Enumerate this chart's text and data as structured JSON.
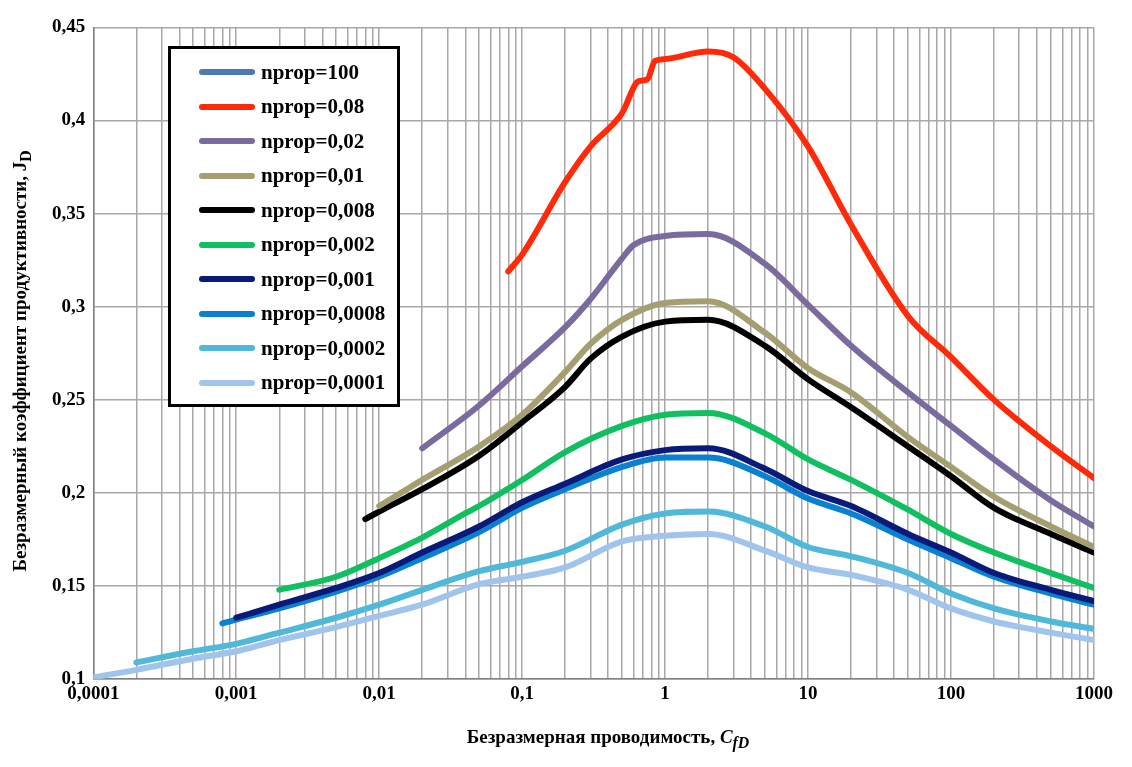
{
  "chart_data": {
    "type": "line",
    "xlabel": "Безразмерная проводимость, C$_{fD}$",
    "ylabel": "Безразмерный коэффициент продуктивности, J$_{D}$",
    "log": "x",
    "grid": true,
    "legend": "top left",
    "xlim": [
      0.0001,
      1000
    ],
    "ylim": [
      0.1,
      0.45
    ],
    "xticks": [
      {
        "value": 0.0001,
        "label": "0,0001"
      },
      {
        "value": 0.0002,
        "label": null
      },
      {
        "value": 0.0003,
        "label": null
      },
      {
        "value": 0.0004,
        "label": null
      },
      {
        "value": 0.0005,
        "label": null
      },
      {
        "value": 0.0006,
        "label": null
      },
      {
        "value": 0.0007,
        "label": null
      },
      {
        "value": 0.0008,
        "label": null
      },
      {
        "value": 0.0009,
        "label": null
      },
      {
        "value": 0.001,
        "label": "0,001"
      },
      {
        "value": 0.002,
        "label": null
      },
      {
        "value": 0.003,
        "label": null
      },
      {
        "value": 0.004,
        "label": null
      },
      {
        "value": 0.005,
        "label": null
      },
      {
        "value": 0.006,
        "label": null
      },
      {
        "value": 0.007,
        "label": null
      },
      {
        "value": 0.008,
        "label": null
      },
      {
        "value": 0.009,
        "label": null
      },
      {
        "value": 0.01,
        "label": "0,01"
      },
      {
        "value": 0.02,
        "label": null
      },
      {
        "value": 0.03,
        "label": null
      },
      {
        "value": 0.04,
        "label": null
      },
      {
        "value": 0.05,
        "label": null
      },
      {
        "value": 0.06,
        "label": null
      },
      {
        "value": 0.07,
        "label": null
      },
      {
        "value": 0.08,
        "label": null
      },
      {
        "value": 0.09,
        "label": null
      },
      {
        "value": 0.1,
        "label": "0,1"
      },
      {
        "value": 0.2,
        "label": null
      },
      {
        "value": 0.3,
        "label": null
      },
      {
        "value": 0.4,
        "label": null
      },
      {
        "value": 0.5,
        "label": null
      },
      {
        "value": 0.6,
        "label": null
      },
      {
        "value": 0.7,
        "label": null
      },
      {
        "value": 0.8,
        "label": null
      },
      {
        "value": 0.9,
        "label": null
      },
      1,
      {
        "value": 2,
        "label": null
      },
      {
        "value": 3,
        "label": null
      },
      {
        "value": 4,
        "label": null
      },
      {
        "value": 5,
        "label": null
      },
      {
        "value": 6,
        "label": null
      },
      {
        "value": 7,
        "label": null
      },
      {
        "value": 8,
        "label": null
      },
      {
        "value": 9,
        "label": null
      },
      10,
      {
        "value": 20,
        "label": null
      },
      {
        "value": 30,
        "label": null
      },
      {
        "value": 40,
        "label": null
      },
      {
        "value": 50,
        "label": null
      },
      {
        "value": 60,
        "label": null
      },
      {
        "value": 70,
        "label": null
      },
      {
        "value": 80,
        "label": null
      },
      {
        "value": 90,
        "label": null
      },
      100,
      {
        "value": 200,
        "label": null
      },
      {
        "value": 300,
        "label": null
      },
      {
        "value": 400,
        "label": null
      },
      {
        "value": 500,
        "label": null
      },
      {
        "value": 600,
        "label": null
      },
      {
        "value": 700,
        "label": null
      },
      {
        "value": 800,
        "label": null
      },
      {
        "value": 900,
        "label": null
      },
      1000
    ],
    "yticks": [
      {
        "value": 0.1,
        "label": "0,1"
      },
      {
        "value": 0.15,
        "label": "0,15"
      },
      {
        "value": 0.2,
        "label": "0,2"
      },
      {
        "value": 0.25,
        "label": "0,25"
      },
      {
        "value": 0.3,
        "label": "0,3"
      },
      {
        "value": 0.35,
        "label": "0,35"
      },
      {
        "value": 0.4,
        "label": "0,4"
      },
      {
        "value": 0.45,
        "label": "0,45"
      }
    ],
    "series": [
      {
        "name": "nprop=100",
        "color": "#4a7ab0"
      },
      {
        "name": "nprop=0,08",
        "color": "#ff2a0a",
        "x": [
          0.08,
          0.1,
          0.2,
          0.3,
          0.5,
          0.65,
          0.75,
          0.85,
          1,
          2,
          3,
          5,
          10,
          20,
          50,
          100,
          200,
          500,
          1000
        ],
        "values": [
          0.319,
          0.328,
          0.367,
          0.386,
          0.404,
          0.421,
          0.422,
          0.432,
          0.433,
          0.437,
          0.434,
          0.417,
          0.386,
          0.344,
          0.295,
          0.273,
          0.25,
          0.225,
          0.208
        ]
      },
      {
        "name": "nprop=0,02",
        "color": "#7a6a9e",
        "x": [
          0.02,
          0.05,
          0.1,
          0.2,
          0.3,
          0.5,
          0.6,
          1,
          2,
          5,
          10,
          20,
          50,
          100,
          200,
          500,
          1000
        ],
        "values": [
          0.224,
          0.247,
          0.268,
          0.289,
          0.304,
          0.326,
          0.333,
          0.338,
          0.339,
          0.323,
          0.301,
          0.279,
          0.254,
          0.236,
          0.218,
          0.196,
          0.182
        ]
      },
      {
        "name": "nprop=0,01",
        "color": "#a59e70",
        "x": [
          0.01,
          0.02,
          0.05,
          0.1,
          0.2,
          0.3,
          0.5,
          1,
          2,
          5,
          10,
          20,
          50,
          100,
          200,
          500,
          1000
        ],
        "values": [
          0.193,
          0.207,
          0.225,
          0.242,
          0.265,
          0.28,
          0.293,
          0.302,
          0.303,
          0.286,
          0.267,
          0.254,
          0.23,
          0.214,
          0.198,
          0.182,
          0.171
        ]
      },
      {
        "name": "nprop=0,008",
        "color": "#000000",
        "x": [
          0.008,
          0.01,
          0.02,
          0.05,
          0.1,
          0.2,
          0.3,
          0.5,
          1,
          2,
          5,
          10,
          20,
          50,
          100,
          200,
          500,
          1000
        ],
        "values": [
          0.186,
          0.19,
          0.202,
          0.22,
          0.238,
          0.257,
          0.272,
          0.284,
          0.292,
          0.293,
          0.279,
          0.261,
          0.246,
          0.225,
          0.209,
          0.192,
          0.178,
          0.168
        ]
      },
      {
        "name": "nprop=0,002",
        "color": "#10c060",
        "x": [
          0.002,
          0.005,
          0.01,
          0.02,
          0.04,
          0.05,
          0.1,
          0.2,
          0.5,
          1,
          2,
          5,
          10,
          20,
          50,
          100,
          200,
          500,
          1000
        ],
        "values": [
          0.148,
          0.155,
          0.165,
          0.176,
          0.189,
          0.193,
          0.207,
          0.222,
          0.236,
          0.242,
          0.243,
          0.232,
          0.218,
          0.207,
          0.191,
          0.178,
          0.168,
          0.157,
          0.149
        ]
      },
      {
        "name": "nprop=0,001",
        "color": "#0a1a78",
        "x": [
          0.001,
          0.002,
          0.005,
          0.01,
          0.02,
          0.05,
          0.1,
          0.2,
          0.5,
          1,
          2,
          5,
          10,
          20,
          50,
          100,
          200,
          500,
          1000
        ],
        "values": [
          0.133,
          0.14,
          0.149,
          0.157,
          0.168,
          0.182,
          0.195,
          0.205,
          0.218,
          0.223,
          0.224,
          0.213,
          0.201,
          0.193,
          0.178,
          0.168,
          0.157,
          0.148,
          0.142
        ]
      },
      {
        "name": "nprop=0,0008",
        "color": "#0a80d0",
        "x": [
          0.0008,
          0.001,
          0.002,
          0.005,
          0.01,
          0.02,
          0.05,
          0.1,
          0.2,
          0.5,
          1,
          2,
          5,
          10,
          20,
          50,
          100,
          200,
          500,
          1000
        ],
        "values": [
          0.13,
          0.132,
          0.138,
          0.147,
          0.155,
          0.165,
          0.179,
          0.192,
          0.202,
          0.214,
          0.219,
          0.219,
          0.209,
          0.197,
          0.189,
          0.175,
          0.165,
          0.155,
          0.146,
          0.14
        ]
      },
      {
        "name": "nprop=0,0002",
        "color": "#50b8d8",
        "x": [
          0.0002,
          0.0005,
          0.001,
          0.002,
          0.005,
          0.01,
          0.02,
          0.05,
          0.1,
          0.2,
          0.5,
          1,
          2,
          5,
          10,
          20,
          50,
          100,
          200,
          500,
          1000
        ],
        "values": [
          0.109,
          0.115,
          0.119,
          0.125,
          0.133,
          0.14,
          0.148,
          0.158,
          0.163,
          0.169,
          0.183,
          0.189,
          0.19,
          0.182,
          0.171,
          0.166,
          0.157,
          0.146,
          0.138,
          0.131,
          0.127
        ]
      },
      {
        "name": "nprop=0,0001",
        "color": "#a0c4ec",
        "x": [
          0.0001,
          0.0002,
          0.0005,
          0.001,
          0.002,
          0.005,
          0.01,
          0.02,
          0.05,
          0.1,
          0.2,
          0.5,
          1,
          2,
          5,
          10,
          20,
          50,
          100,
          200,
          500,
          1000
        ],
        "values": [
          0.101,
          0.105,
          0.111,
          0.115,
          0.121,
          0.128,
          0.134,
          0.14,
          0.151,
          0.155,
          0.16,
          0.174,
          0.177,
          0.178,
          0.169,
          0.16,
          0.156,
          0.148,
          0.138,
          0.131,
          0.125,
          0.121
        ]
      }
    ]
  }
}
